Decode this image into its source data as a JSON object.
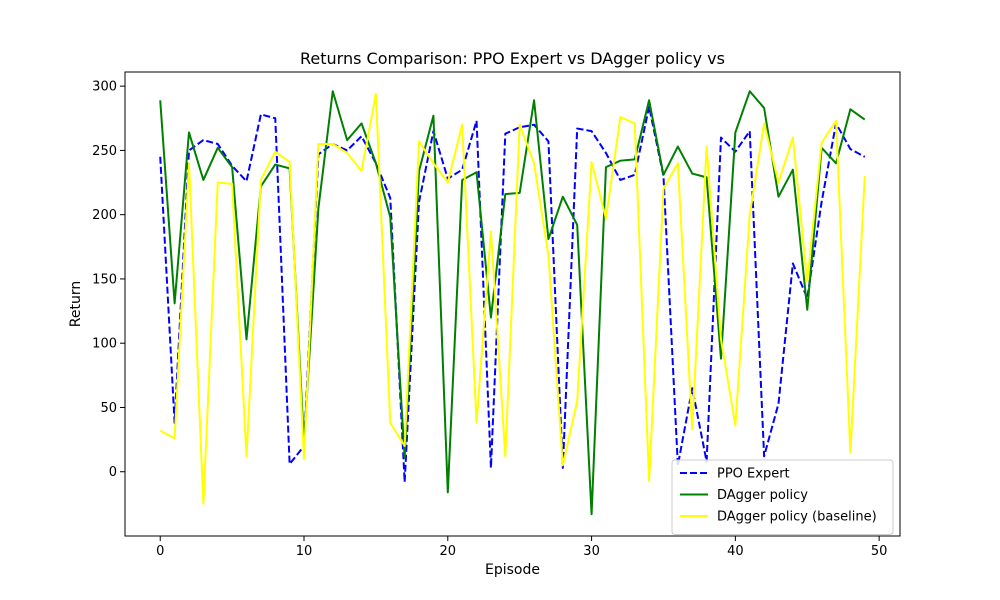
{
  "chart_data": {
    "type": "line",
    "title": "Returns Comparison: PPO Expert vs DAgger policy vs",
    "xlabel": "Episode",
    "ylabel": "Return",
    "xlim": [
      -2.45,
      51.45
    ],
    "ylim": [
      -50,
      311
    ],
    "xticks": [
      0,
      10,
      20,
      30,
      40,
      50
    ],
    "yticks": [
      0,
      50,
      100,
      150,
      200,
      250,
      300
    ],
    "grid": false,
    "legend_position": "bottom-right",
    "x": [
      0,
      1,
      2,
      3,
      4,
      5,
      6,
      7,
      8,
      9,
      10,
      11,
      12,
      13,
      14,
      15,
      16,
      17,
      18,
      19,
      20,
      21,
      22,
      23,
      24,
      25,
      26,
      27,
      28,
      29,
      30,
      31,
      32,
      33,
      34,
      35,
      36,
      37,
      38,
      39,
      40,
      41,
      42,
      43,
      44,
      45,
      46,
      47,
      48,
      49
    ],
    "series": [
      {
        "name": "PPO Expert",
        "color": "#0000ff",
        "dash": "dashed",
        "values": [
          245,
          38,
          250,
          258,
          255,
          238,
          226,
          278,
          275,
          6,
          20,
          247,
          255,
          250,
          261,
          240,
          213,
          -8,
          210,
          265,
          228,
          235,
          273,
          3,
          263,
          268,
          270,
          257,
          3,
          267,
          265,
          248,
          227,
          231,
          284,
          230,
          5,
          65,
          8,
          260,
          249,
          265,
          12,
          53,
          162,
          135,
          210,
          271,
          251,
          245
        ]
      },
      {
        "name": "DAgger policy",
        "color": "#008000",
        "dash": "solid",
        "values": [
          289,
          131,
          264,
          227,
          252,
          237,
          103,
          222,
          239,
          236,
          22,
          205,
          296,
          258,
          271,
          240,
          198,
          11,
          234,
          277,
          -16,
          227,
          233,
          120,
          216,
          217,
          289,
          181,
          214,
          192,
          -33,
          237,
          242,
          243,
          289,
          231,
          253,
          232,
          229,
          88,
          264,
          296,
          283,
          214,
          235,
          126,
          252,
          240,
          282,
          274
        ]
      },
      {
        "name": "DAgger policy (baseline)",
        "color": "#ffff00",
        "dash": "solid",
        "values": [
          32,
          26,
          240,
          -25,
          225,
          224,
          12,
          227,
          249,
          241,
          10,
          255,
          255,
          248,
          234,
          294,
          38,
          20,
          257,
          240,
          225,
          270,
          38,
          187,
          12,
          270,
          240,
          168,
          5,
          55,
          241,
          197,
          276,
          271,
          -7,
          220,
          240,
          33,
          253,
          103,
          36,
          200,
          271,
          225,
          260,
          148,
          256,
          273,
          15,
          230
        ]
      }
    ]
  }
}
